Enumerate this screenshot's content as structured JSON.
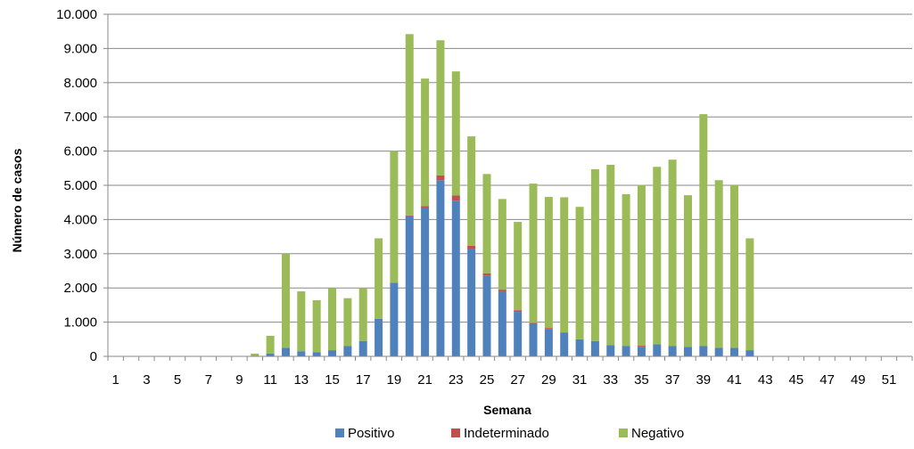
{
  "chart_data": {
    "type": "bar",
    "stacked": true,
    "xlabel": "Semana",
    "ylabel": "Número de casos",
    "ylim": [
      0,
      10000
    ],
    "y_ticks": [
      "0",
      "1.000",
      "2.000",
      "3.000",
      "4.000",
      "5.000",
      "6.000",
      "7.000",
      "8.000",
      "9.000",
      "10.000"
    ],
    "x_tick_labels": [
      "1",
      "3",
      "5",
      "7",
      "9",
      "11",
      "13",
      "15",
      "17",
      "19",
      "21",
      "23",
      "25",
      "27",
      "29",
      "31",
      "33",
      "35",
      "37",
      "39",
      "41",
      "43",
      "45",
      "47",
      "49",
      "51"
    ],
    "grid": "horizontal",
    "legend_position": "bottom",
    "categories": [
      "1",
      "2",
      "3",
      "4",
      "5",
      "6",
      "7",
      "8",
      "9",
      "10",
      "11",
      "12",
      "13",
      "14",
      "15",
      "16",
      "17",
      "18",
      "19",
      "20",
      "21",
      "22",
      "23",
      "24",
      "25",
      "26",
      "27",
      "28",
      "29",
      "30",
      "31",
      "32",
      "33",
      "34",
      "35",
      "36",
      "37",
      "38",
      "39",
      "40",
      "41",
      "42",
      "43",
      "44",
      "45",
      "46",
      "47",
      "48",
      "49",
      "50",
      "51",
      "52"
    ],
    "series": [
      {
        "name": "Positivo",
        "color": "#4f81bd",
        "values": [
          0,
          0,
          0,
          0,
          0,
          0,
          0,
          0,
          0,
          0,
          80,
          250,
          150,
          120,
          180,
          300,
          450,
          1100,
          2150,
          4100,
          4350,
          5150,
          4550,
          3150,
          2350,
          1900,
          1300,
          950,
          800,
          700,
          500,
          450,
          330,
          300,
          280,
          350,
          300,
          280,
          300,
          250,
          250,
          180,
          0,
          0,
          0,
          0,
          0,
          0,
          0,
          0,
          0,
          0
        ]
      },
      {
        "name": "Indeterminado",
        "color": "#c0504d",
        "values": [
          0,
          0,
          0,
          0,
          0,
          0,
          0,
          0,
          0,
          0,
          0,
          0,
          0,
          0,
          0,
          0,
          0,
          0,
          0,
          20,
          40,
          140,
          150,
          80,
          80,
          50,
          50,
          30,
          30,
          0,
          0,
          0,
          0,
          0,
          30,
          0,
          0,
          0,
          0,
          0,
          0,
          0,
          0,
          0,
          0,
          0,
          0,
          0,
          0,
          0,
          0,
          0
        ]
      },
      {
        "name": "Negativo",
        "color": "#9bbb59",
        "values": [
          0,
          0,
          0,
          0,
          0,
          0,
          0,
          0,
          0,
          80,
          520,
          2750,
          1750,
          1520,
          1820,
          1400,
          1530,
          2350,
          3850,
          5300,
          3730,
          3950,
          3630,
          3200,
          2900,
          2650,
          2580,
          4070,
          3830,
          3950,
          3870,
          5020,
          5270,
          4440,
          4700,
          5190,
          5450,
          4430,
          6780,
          4900,
          4750,
          3270,
          0,
          0,
          0,
          0,
          0,
          0,
          0,
          0,
          0,
          0
        ]
      }
    ]
  }
}
